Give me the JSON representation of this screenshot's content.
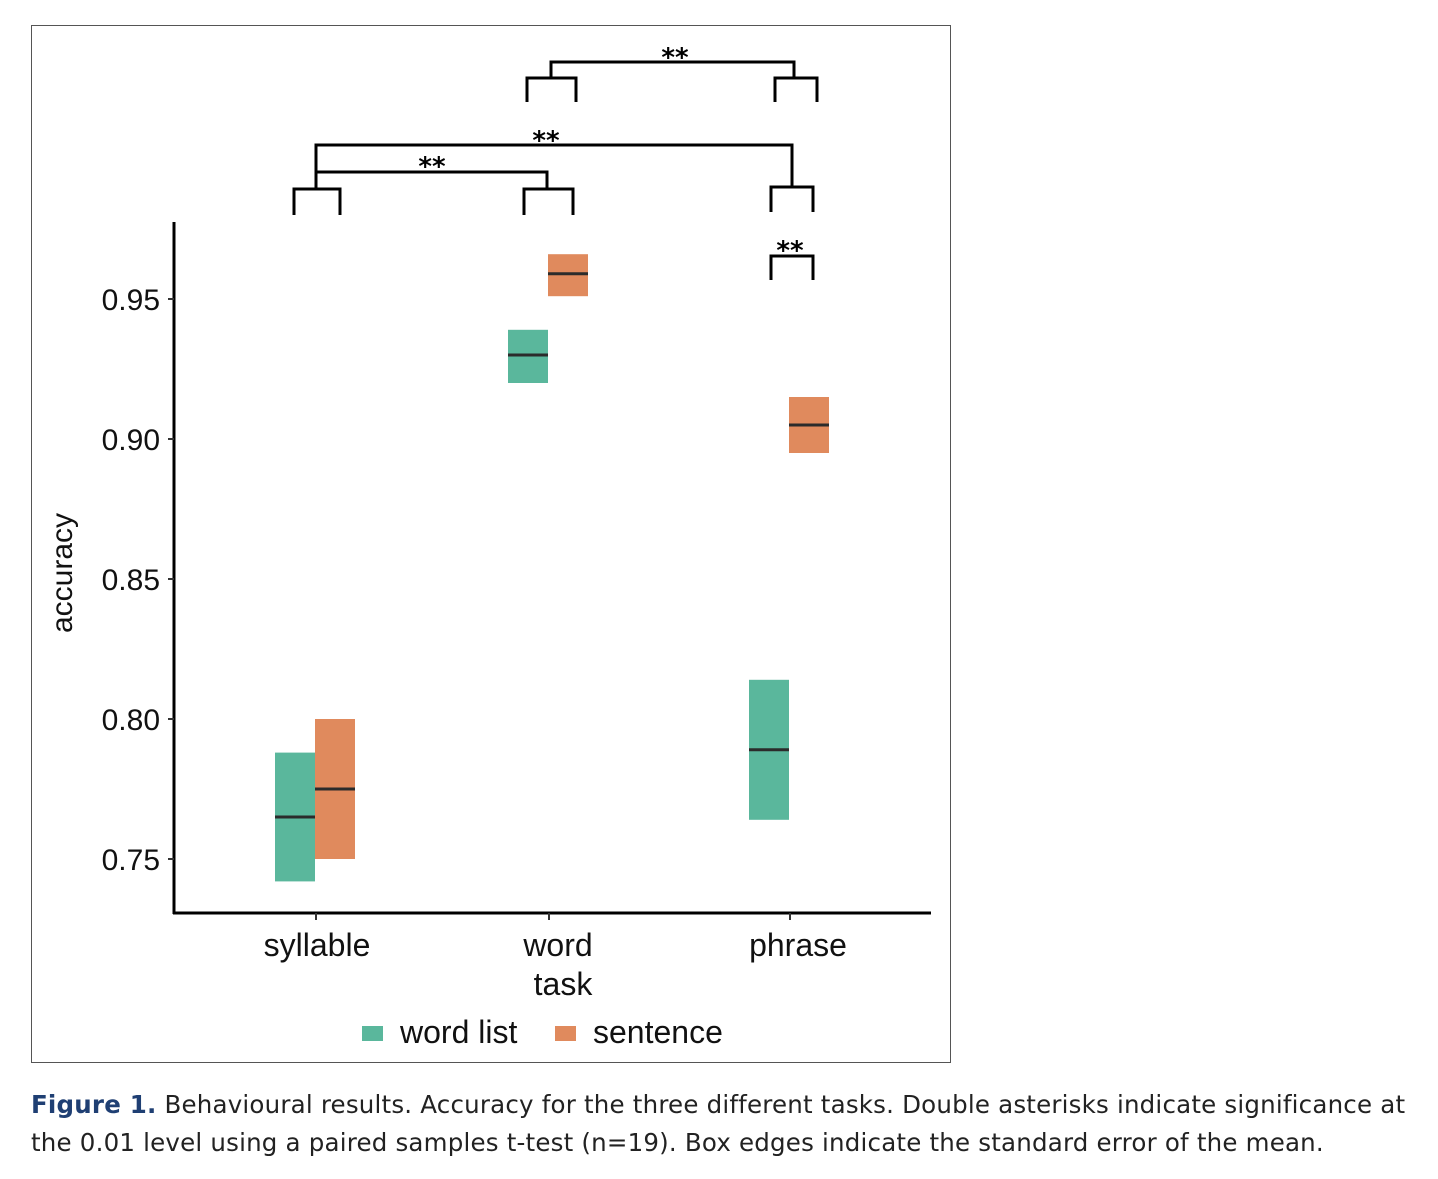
{
  "chart_data": {
    "type": "box",
    "xlabel": "task",
    "ylabel": "accuracy",
    "categories": [
      "syllable",
      "word",
      "phrase"
    ],
    "ylim": [
      0.73,
      0.975
    ],
    "yticks": [
      "0.75",
      "0.80",
      "0.85",
      "0.90",
      "0.95"
    ],
    "legend_position": "bottom",
    "grid": false,
    "series": [
      {
        "name": "word list",
        "color": "#5ab79c",
        "values": [
          {
            "mean": 0.765,
            "lower": 0.742,
            "upper": 0.788
          },
          {
            "mean": 0.93,
            "lower": 0.92,
            "upper": 0.939
          },
          {
            "mean": 0.789,
            "lower": 0.764,
            "upper": 0.814
          }
        ]
      },
      {
        "name": "sentence",
        "color": "#e08a5d",
        "values": [
          {
            "mean": 0.775,
            "lower": 0.75,
            "upper": 0.8
          },
          {
            "mean": 0.959,
            "lower": 0.951,
            "upper": 0.966
          },
          {
            "mean": 0.905,
            "lower": 0.895,
            "upper": 0.915
          }
        ]
      }
    ],
    "annotations": [
      {
        "label": "**",
        "compares": [
          "word",
          "phrase"
        ]
      },
      {
        "label": "**",
        "compares": [
          "syllable",
          "phrase"
        ]
      },
      {
        "label": "**",
        "compares": [
          "syllable",
          "word"
        ]
      },
      {
        "label": "**",
        "compares": [
          "phrase: word list",
          "phrase: sentence"
        ]
      }
    ]
  },
  "caption": {
    "label": "Figure 1.",
    "text": " Behavioural results. Accuracy for the three different tasks. Double asterisks indicate significance at the 0.01 level using a paired samples t-test (n=19). Box edges indicate the standard error of the mean."
  }
}
